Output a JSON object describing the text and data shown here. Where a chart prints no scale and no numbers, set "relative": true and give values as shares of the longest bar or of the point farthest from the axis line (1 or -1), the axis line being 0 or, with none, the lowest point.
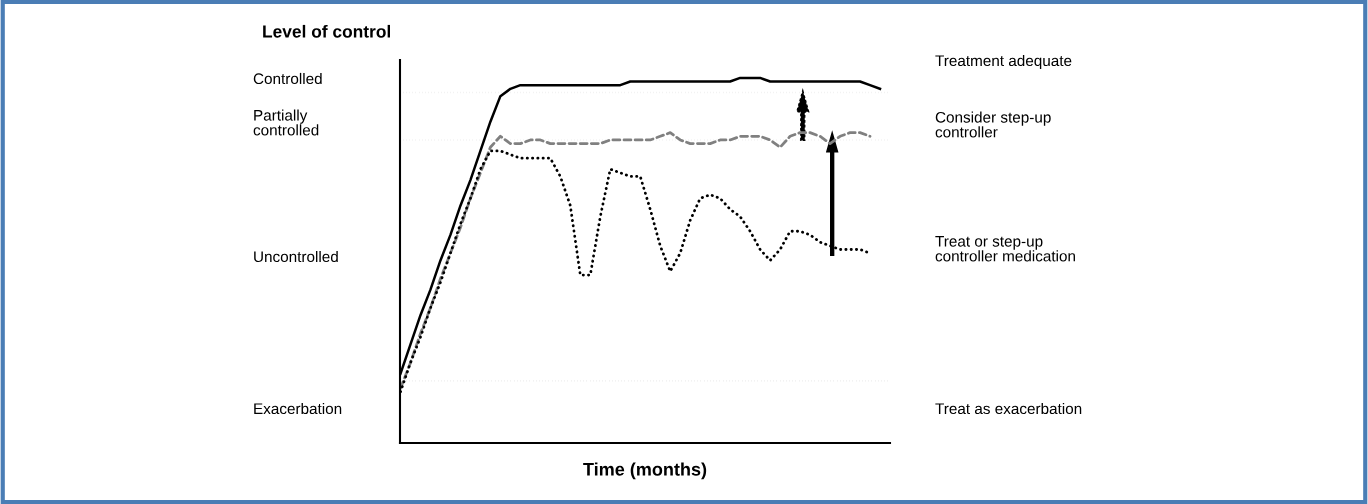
{
  "chart_data": {
    "type": "line",
    "title": "Level of control",
    "xlabel": "Time (months)",
    "relative": true,
    "legend": false,
    "tick_labels": false,
    "categories": [
      null,
      null,
      null,
      null,
      null,
      null,
      null,
      null,
      null,
      null,
      null,
      null,
      null,
      null,
      null,
      null,
      null,
      null,
      null,
      null,
      null,
      null,
      null,
      null,
      null,
      null,
      null,
      null,
      null,
      null,
      null,
      null,
      null,
      null,
      null,
      null,
      null,
      null,
      null,
      null,
      null,
      null,
      null,
      null,
      null,
      null,
      null,
      null,
      null
    ],
    "series": [
      {
        "color": "#000000",
        "line_style": "solid",
        "values": [
          0.19,
          0.27,
          0.35,
          0.42,
          0.5,
          0.57,
          0.65,
          0.72,
          0.8,
          0.88,
          0.95,
          0.97,
          0.98,
          0.98,
          0.98,
          0.98,
          0.98,
          0.98,
          0.98,
          0.98,
          0.98,
          0.98,
          0.98,
          0.99,
          0.99,
          0.99,
          0.99,
          0.99,
          0.99,
          0.99,
          0.99,
          0.99,
          0.99,
          0.99,
          1.0,
          1.0,
          1.0,
          0.99,
          0.99,
          0.99,
          0.99,
          0.99,
          0.99,
          0.99,
          0.99,
          0.99,
          0.99,
          0.98,
          0.97
        ]
      },
      {
        "color": "#808080",
        "line_style": "dashed",
        "values": [
          0.15,
          0.22,
          0.3,
          0.37,
          0.45,
          0.52,
          0.59,
          0.67,
          0.74,
          0.81,
          0.84,
          0.82,
          0.82,
          0.83,
          0.83,
          0.82,
          0.82,
          0.82,
          0.82,
          0.82,
          0.82,
          0.83,
          0.83,
          0.83,
          0.83,
          0.83,
          0.84,
          0.85,
          0.83,
          0.82,
          0.82,
          0.82,
          0.83,
          0.83,
          0.84,
          0.84,
          0.84,
          0.83,
          0.81,
          0.84,
          0.85,
          0.85,
          0.84,
          0.82,
          0.84,
          0.85,
          0.85,
          0.84,
          null
        ]
      },
      {
        "color": "#000000",
        "line_style": "dotted",
        "values": [
          0.14,
          0.22,
          0.29,
          0.37,
          0.44,
          0.52,
          0.6,
          0.67,
          0.75,
          0.8,
          0.8,
          0.79,
          0.78,
          0.78,
          0.78,
          0.78,
          0.73,
          0.65,
          0.46,
          0.46,
          0.62,
          0.75,
          0.74,
          0.73,
          0.73,
          0.64,
          0.54,
          0.47,
          0.52,
          0.61,
          0.67,
          0.68,
          0.67,
          0.64,
          0.62,
          0.58,
          0.53,
          0.5,
          0.53,
          0.58,
          0.58,
          0.57,
          0.55,
          0.54,
          0.53,
          0.53,
          0.53,
          0.52,
          null
        ]
      }
    ],
    "ref_lines": [
      {
        "axis": "y",
        "value": 0.96,
        "color": "#b0b0b0",
        "line_style": "dotted"
      },
      {
        "axis": "y",
        "value": 0.83,
        "color": "#b0b0b0",
        "line_style": "dotted"
      },
      {
        "axis": "y",
        "value": 0.17,
        "color": "#b0b0b0",
        "line_style": "dotted"
      }
    ],
    "annotations": [
      "Controlled",
      "Partially\ncontrolled",
      "Uncontrolled",
      "Exacerbation",
      "Treatment adequate",
      "Consider step-up\ncontroller",
      "Treat or step-up\ncontroller medication",
      "Treat as exacerbation"
    ]
  }
}
